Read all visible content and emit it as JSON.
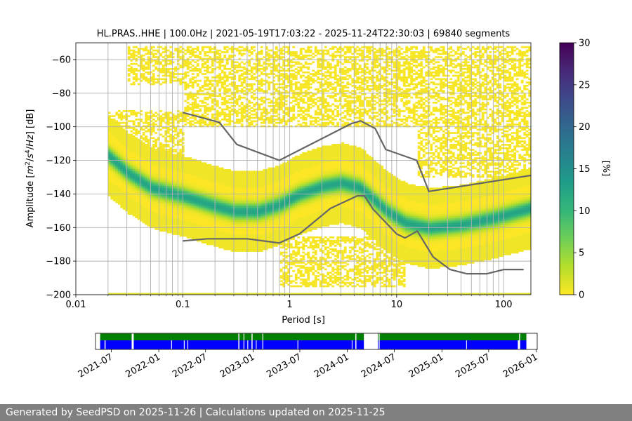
{
  "footer": {
    "text": "Generated by SeedPSD on 2025-11-26 | Calculations updated on 2025-11-25"
  },
  "colors": {
    "gridline": "#b0b0b0",
    "curve": "#666666",
    "coverage_green": "#008000",
    "coverage_blue": "#0000ff",
    "viridis": [
      "#fde725",
      "#b5de2b",
      "#6ece58",
      "#35b779",
      "#1f9e89",
      "#26828e",
      "#31688e",
      "#3e4989",
      "#482878",
      "#440154"
    ]
  },
  "chart_data": [
    {
      "type": "heatmap",
      "title": "HL.PRAS..HHE | 100.0Hz | 2021-05-19T17:03:22 - 2025-11-24T22:30:03 | 69840 segments",
      "xlabel": "Period [s]",
      "ylabel_parts": [
        "Amplitude [",
        "m",
        "2",
        "/",
        "s",
        "4",
        "/",
        "Hz",
        "] [dB]"
      ],
      "x_scale": "log",
      "xlim": [
        0.01,
        180
      ],
      "ylim": [
        -200,
        -50
      ],
      "x_ticks": [
        {
          "value": 0.01,
          "label": "0.01"
        },
        {
          "value": 0.1,
          "label": "0.1"
        },
        {
          "value": 1,
          "label": "1"
        },
        {
          "value": 10,
          "label": "10"
        },
        {
          "value": 100,
          "label": "100"
        }
      ],
      "y_ticks": [
        {
          "value": -60,
          "label": "−60"
        },
        {
          "value": -80,
          "label": "−80"
        },
        {
          "value": -100,
          "label": "−100"
        },
        {
          "value": -120,
          "label": "−120"
        },
        {
          "value": -140,
          "label": "−140"
        },
        {
          "value": -160,
          "label": "−160"
        },
        {
          "value": -180,
          "label": "−180"
        },
        {
          "value": -200,
          "label": "−200"
        }
      ],
      "vertical_gridlines_periods": [
        0.02,
        0.03,
        0.04,
        0.05,
        0.06,
        0.07,
        0.08,
        0.09,
        0.1,
        0.2,
        0.3,
        0.4,
        0.5,
        0.6,
        0.7,
        0.8,
        0.9,
        1,
        2,
        3,
        4,
        5,
        6,
        7,
        8,
        9,
        10,
        20,
        30,
        40,
        50,
        60,
        70,
        80,
        90,
        100
      ],
      "horizontal_grid": true,
      "density_mode_curve": {
        "period": [
          0.02,
          0.03,
          0.05,
          0.1,
          0.2,
          0.3,
          0.5,
          0.8,
          1.2,
          2,
          3,
          4.5,
          6,
          8,
          12,
          20,
          40,
          80,
          180
        ],
        "amplitude": [
          -117,
          -127,
          -136,
          -141,
          -147,
          -150,
          -150,
          -146,
          -140,
          -135,
          -133,
          -136,
          -143,
          -150,
          -157,
          -160,
          -158,
          -154,
          -148
        ]
      },
      "density_spread_db": 10,
      "scatter_regions": [
        {
          "period_range": [
            0.02,
            0.1
          ],
          "amplitude_range": [
            -90,
            -125
          ]
        },
        {
          "period_range": [
            0.03,
            180
          ],
          "amplitude_range": [
            -52,
            -75
          ]
        },
        {
          "period_range": [
            0.1,
            15
          ],
          "amplitude_range": [
            -75,
            -100
          ]
        },
        {
          "period_range": [
            15,
            180
          ],
          "amplitude_range": [
            -70,
            -130
          ]
        },
        {
          "period_range": [
            0.8,
            12
          ],
          "amplitude_range": [
            -165,
            -195
          ]
        },
        {
          "period_range": [
            12,
            180
          ],
          "amplitude_range": [
            -160,
            -172
          ]
        }
      ],
      "baseline_amplitude": -200,
      "noise_model_high": {
        "period": [
          0.1,
          0.22,
          0.32,
          0.8,
          3.8,
          4.6,
          6.3,
          7.9,
          15.4,
          20,
          354.8
        ],
        "amplitude": [
          -91.5,
          -97.4,
          -110.5,
          -120,
          -98,
          -96.5,
          -101,
          -113.5,
          -120,
          -138.5,
          -126
        ]
      },
      "noise_model_low": {
        "period": [
          0.1,
          0.17,
          0.4,
          0.8,
          1.24,
          2.4,
          4.3,
          5,
          6,
          10,
          12,
          15.6,
          21.9,
          31.6,
          45,
          70,
          101,
          154
        ],
        "amplitude": [
          -168,
          -166.7,
          -166.7,
          -169.2,
          -163.7,
          -148.6,
          -141.1,
          -141.1,
          -149,
          -163.8,
          -166.2,
          -162.1,
          -177.5,
          -185,
          -187.5,
          -187.5,
          -185,
          -185
        ]
      }
    },
    {
      "type": "heatmap",
      "role": "colorbar",
      "label": "[%]",
      "range": [
        0,
        30
      ],
      "ticks": [
        {
          "value": 0,
          "label": "0"
        },
        {
          "value": 5,
          "label": "5"
        },
        {
          "value": 10,
          "label": "10"
        },
        {
          "value": 15,
          "label": "15"
        },
        {
          "value": 20,
          "label": "20"
        },
        {
          "value": 25,
          "label": "25"
        },
        {
          "value": 30,
          "label": "30"
        }
      ]
    },
    {
      "type": "bar",
      "role": "data-coverage-timeline",
      "xlim": [
        "2021-05-01",
        "2026-01-05"
      ],
      "data_range": [
        "2021-05-19",
        "2025-11-24"
      ],
      "x_ticks": [
        "2021-07",
        "2022-01",
        "2022-07",
        "2023-01",
        "2023-07",
        "2024-01",
        "2024-07",
        "2025-01",
        "2025-07",
        "2026-01"
      ],
      "green_row_gaps": [
        [
          "2021-09-18",
          "2021-09-26"
        ],
        [
          "2022-11-05",
          "2022-11-09"
        ],
        [
          "2022-11-25",
          "2022-11-28"
        ],
        [
          "2022-12-26",
          "2022-12-30"
        ],
        [
          "2023-02-06",
          "2023-02-09"
        ],
        [
          "2024-02-01",
          "2024-02-05"
        ],
        [
          "2024-03-05",
          "2024-04-28"
        ],
        [
          "2024-05-01",
          "2024-05-05"
        ],
        [
          "2025-10-27",
          "2025-10-31"
        ]
      ],
      "blue_row_gaps": [
        [
          "2021-06-05",
          "2021-06-09"
        ],
        [
          "2021-09-18",
          "2021-09-26"
        ],
        [
          "2022-02-18",
          "2022-02-21"
        ],
        [
          "2022-04-08",
          "2022-04-11"
        ],
        [
          "2022-04-22",
          "2022-04-25"
        ],
        [
          "2022-11-05",
          "2022-11-09"
        ],
        [
          "2022-11-25",
          "2022-11-28"
        ],
        [
          "2022-12-10",
          "2022-12-13"
        ],
        [
          "2022-12-26",
          "2022-12-30"
        ],
        [
          "2023-01-12",
          "2023-01-14"
        ],
        [
          "2023-02-06",
          "2023-02-09"
        ],
        [
          "2023-06-22",
          "2023-06-24"
        ],
        [
          "2024-01-18",
          "2024-01-20"
        ],
        [
          "2024-02-01",
          "2024-02-05"
        ],
        [
          "2024-03-05",
          "2024-04-28"
        ],
        [
          "2024-05-01",
          "2024-05-05"
        ],
        [
          "2025-04-05",
          "2025-04-07"
        ],
        [
          "2025-10-22",
          "2025-10-31"
        ]
      ]
    }
  ]
}
